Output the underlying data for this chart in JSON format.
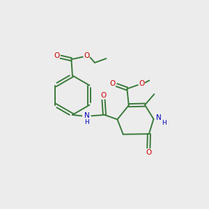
{
  "bg_color": "#ececec",
  "bond_color": "#3a7a3a",
  "o_color": "#cc0000",
  "n_color": "#0000bb",
  "figsize": [
    3.0,
    3.0
  ],
  "dpi": 100,
  "xlim": [
    0,
    10
  ],
  "ylim": [
    0,
    10
  ]
}
